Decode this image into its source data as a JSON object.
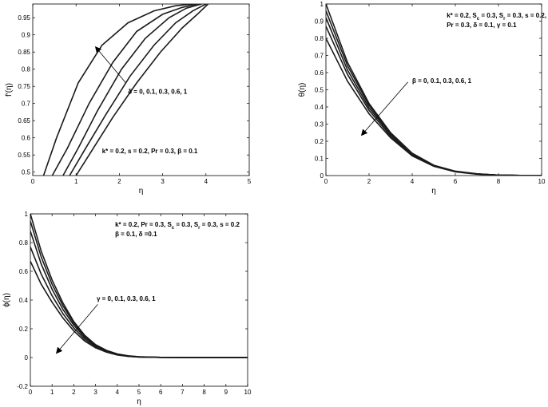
{
  "chart_data": [
    {
      "id": "fprime",
      "type": "line",
      "title": "",
      "xlabel": "η",
      "ylabel": "f′(η)",
      "xlim": [
        0,
        5
      ],
      "ylim": [
        0.49,
        0.99
      ],
      "xticks": [
        "0",
        "1",
        "2",
        "3",
        "4",
        "5"
      ],
      "yticks": [
        "0.5",
        "0.55",
        "0.6",
        "0.65",
        "0.7",
        "0.75",
        "0.8",
        "0.85",
        "0.9",
        "0.95"
      ],
      "grid": false,
      "annotations": [
        {
          "lines": [
            [
              {
                "t": "δ = 0, 0.1, 0.3, 0.6, 1"
              }
            ]
          ],
          "at": [
            2.2,
            0.728
          ]
        },
        {
          "lines": [
            [
              {
                "t": "k* = 0.2, s = 0.2, Pr = 0.3, β = 0.1"
              }
            ]
          ],
          "at": [
            1.6,
            0.555
          ]
        }
      ],
      "arrow": {
        "from": [
          2.15,
          0.76
        ],
        "to": [
          1.45,
          0.865
        ]
      },
      "series": [
        {
          "x": [
            0.25,
            0.55,
            1.05,
            1.6,
            2.2,
            2.8,
            3.3,
            3.7
          ],
          "y": [
            0.49,
            0.6,
            0.76,
            0.87,
            0.935,
            0.97,
            0.985,
            0.99
          ]
        },
        {
          "x": [
            0.45,
            0.8,
            1.3,
            1.85,
            2.4,
            3.0,
            3.45,
            3.8
          ],
          "y": [
            0.49,
            0.57,
            0.7,
            0.82,
            0.91,
            0.96,
            0.98,
            0.99
          ]
        },
        {
          "x": [
            0.7,
            1.05,
            1.5,
            2.05,
            2.6,
            3.15,
            3.55,
            3.9
          ],
          "y": [
            0.49,
            0.57,
            0.68,
            0.8,
            0.89,
            0.95,
            0.978,
            0.99
          ]
        },
        {
          "x": [
            0.85,
            1.2,
            1.7,
            2.25,
            2.8,
            3.3,
            3.7,
            4.0
          ],
          "y": [
            0.49,
            0.565,
            0.67,
            0.78,
            0.87,
            0.935,
            0.97,
            0.99
          ]
        },
        {
          "x": [
            1.0,
            1.35,
            1.85,
            2.4,
            2.95,
            3.45,
            3.8,
            4.05
          ],
          "y": [
            0.49,
            0.56,
            0.66,
            0.76,
            0.85,
            0.92,
            0.96,
            0.99
          ]
        }
      ]
    },
    {
      "id": "theta",
      "type": "line",
      "title": "",
      "xlabel": "η",
      "ylabel": "θ(η)",
      "xlim": [
        0,
        10
      ],
      "ylim": [
        0,
        1
      ],
      "xticks": [
        "0",
        "2",
        "4",
        "6",
        "8",
        "10"
      ],
      "yticks": [
        "0",
        "0.1",
        "0.2",
        "0.3",
        "0.4",
        "0.5",
        "0.6",
        "0.7",
        "0.8",
        "0.9",
        "1"
      ],
      "grid": false,
      "annotations": [
        {
          "lines": [
            [
              {
                "t": "k* = 0.2, S"
              },
              {
                "t": "c",
                "sub": true
              },
              {
                "t": " = 0.3, S"
              },
              {
                "t": "r",
                "sub": true
              },
              {
                "t": " = 0.3, s = 0.2,"
              }
            ],
            [
              {
                "t": "Pr = 0.3, δ = 0.1, γ = 0.1"
              }
            ]
          ],
          "at": [
            5.6,
            0.92
          ]
        },
        {
          "lines": [
            [
              {
                "t": "β = 0, 0.1, 0.3, 0.6, 1"
              }
            ]
          ],
          "at": [
            4.0,
            0.54
          ]
        }
      ],
      "arrow": {
        "from": [
          3.8,
          0.545
        ],
        "to": [
          1.65,
          0.235
        ]
      },
      "series": [
        {
          "x": [
            0,
            1,
            2,
            3,
            4,
            5,
            6,
            7,
            8,
            9,
            10
          ],
          "y": [
            1.0,
            0.66,
            0.42,
            0.25,
            0.13,
            0.06,
            0.025,
            0.01,
            0.003,
            0.001,
            0
          ]
        },
        {
          "x": [
            0,
            1,
            2,
            3,
            4,
            5,
            6,
            7,
            8,
            9,
            10
          ],
          "y": [
            0.96,
            0.64,
            0.41,
            0.245,
            0.13,
            0.06,
            0.025,
            0.01,
            0.003,
            0.001,
            0
          ]
        },
        {
          "x": [
            0,
            1,
            2,
            3,
            4,
            5,
            6,
            7,
            8,
            9,
            10
          ],
          "y": [
            0.92,
            0.615,
            0.395,
            0.24,
            0.125,
            0.058,
            0.024,
            0.009,
            0.003,
            0.001,
            0
          ]
        },
        {
          "x": [
            0,
            1,
            2,
            3,
            4,
            5,
            6,
            7,
            8,
            9,
            10
          ],
          "y": [
            0.87,
            0.59,
            0.38,
            0.23,
            0.12,
            0.056,
            0.023,
            0.009,
            0.003,
            0.001,
            0
          ]
        },
        {
          "x": [
            0,
            1,
            2,
            3,
            4,
            5,
            6,
            7,
            8,
            9,
            10
          ],
          "y": [
            0.8,
            0.55,
            0.36,
            0.22,
            0.115,
            0.054,
            0.022,
            0.008,
            0.003,
            0.001,
            0
          ]
        }
      ]
    },
    {
      "id": "phi",
      "type": "line",
      "title": "",
      "xlabel": "η",
      "ylabel": "ϕ(η)",
      "xlim": [
        0,
        10
      ],
      "ylim": [
        -0.2,
        1
      ],
      "xticks": [
        "0",
        "1",
        "2",
        "3",
        "4",
        "5",
        "6",
        "7",
        "8",
        "9",
        "10"
      ],
      "yticks": [
        "-0.2",
        "0",
        "0.2",
        "0.4",
        "0.6",
        "0.8",
        "1"
      ],
      "grid": false,
      "annotations": [
        {
          "lines": [
            [
              {
                "t": "k* = 0.2, Pr = 0.3, S"
              },
              {
                "t": "c",
                "sub": true
              },
              {
                "t": " = 0.3, S"
              },
              {
                "t": "r",
                "sub": true
              },
              {
                "t": " = 0.3, s = 0.2"
              }
            ],
            [
              {
                "t": "β = 0.1, δ =0.1"
              }
            ]
          ],
          "at": [
            3.9,
            0.91
          ]
        },
        {
          "lines": [
            [
              {
                "t": "γ = 0, 0.1, 0.3, 0.6, 1"
              }
            ]
          ],
          "at": [
            3.05,
            0.395
          ]
        }
      ],
      "arrow": {
        "from": [
          3.1,
          0.37
        ],
        "to": [
          1.2,
          0.03
        ]
      },
      "series": [
        {
          "x": [
            0,
            0.5,
            1,
            1.5,
            2,
            2.5,
            3,
            3.5,
            4,
            4.5,
            5,
            6,
            7,
            8,
            9,
            10
          ],
          "y": [
            1.0,
            0.74,
            0.54,
            0.38,
            0.25,
            0.155,
            0.09,
            0.05,
            0.025,
            0.012,
            0.005,
            0.001,
            0,
            0,
            0,
            0
          ]
        },
        {
          "x": [
            0,
            0.5,
            1,
            1.5,
            2,
            2.5,
            3,
            3.5,
            4,
            4.5,
            5,
            6,
            7,
            8,
            9,
            10
          ],
          "y": [
            0.95,
            0.7,
            0.51,
            0.36,
            0.24,
            0.15,
            0.088,
            0.048,
            0.024,
            0.011,
            0.005,
            0.001,
            0,
            0,
            0,
            0
          ]
        },
        {
          "x": [
            0,
            0.5,
            1,
            1.5,
            2,
            2.5,
            3,
            3.5,
            4,
            4.5,
            5,
            6,
            7,
            8,
            9,
            10
          ],
          "y": [
            0.88,
            0.65,
            0.475,
            0.335,
            0.225,
            0.14,
            0.083,
            0.045,
            0.022,
            0.01,
            0.004,
            0.001,
            0,
            0,
            0,
            0
          ]
        },
        {
          "x": [
            0,
            0.5,
            1,
            1.5,
            2,
            2.5,
            3,
            3.5,
            4,
            4.5,
            5,
            6,
            7,
            8,
            9,
            10
          ],
          "y": [
            0.77,
            0.58,
            0.43,
            0.305,
            0.205,
            0.128,
            0.076,
            0.041,
            0.02,
            0.009,
            0.004,
            0.001,
            0,
            0,
            0,
            0
          ]
        },
        {
          "x": [
            0,
            0.5,
            1,
            1.5,
            2,
            2.5,
            3,
            3.5,
            4,
            4.5,
            5,
            6,
            7,
            8,
            9,
            10
          ],
          "y": [
            0.67,
            0.51,
            0.385,
            0.275,
            0.185,
            0.115,
            0.068,
            0.037,
            0.018,
            0.008,
            0.003,
            0.001,
            0,
            0,
            0,
            0
          ]
        }
      ]
    }
  ]
}
